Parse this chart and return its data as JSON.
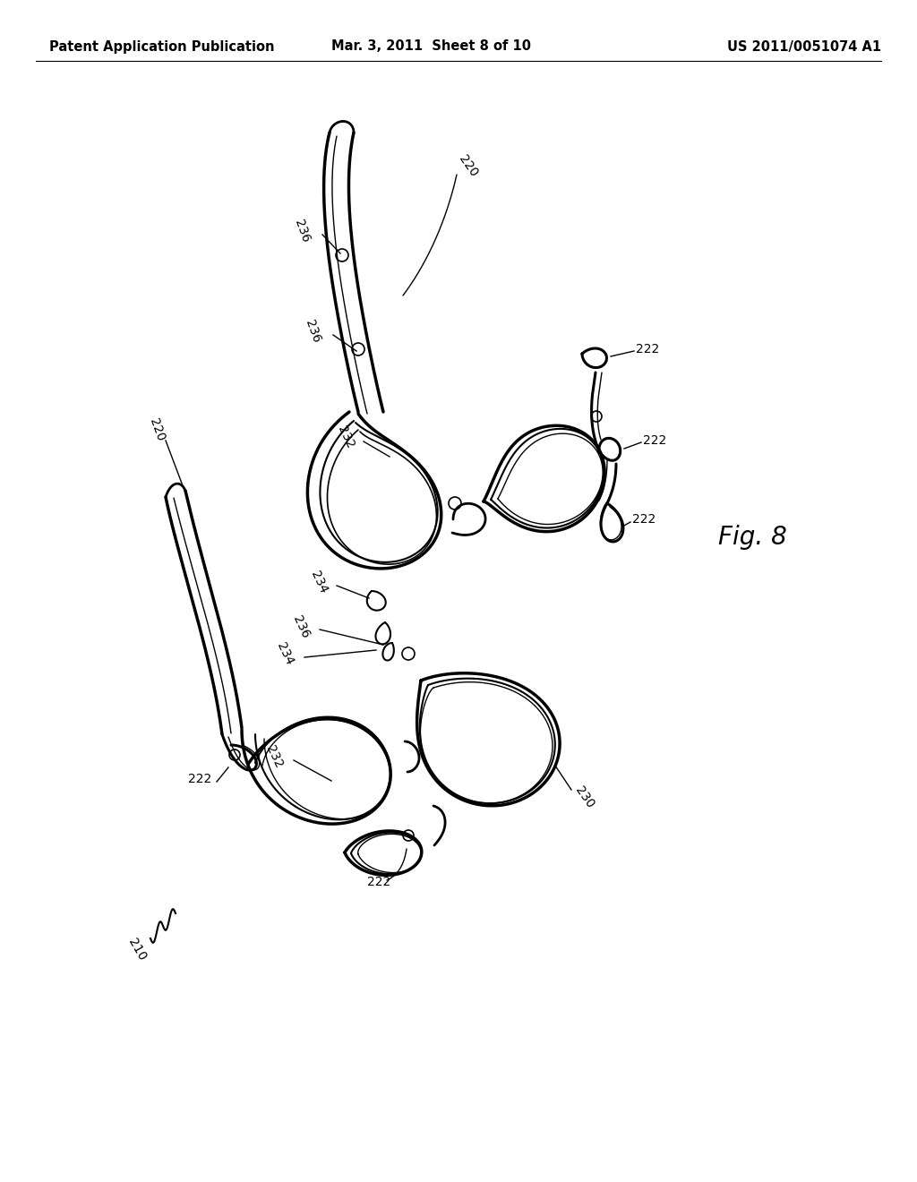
{
  "title_left": "Patent Application Publication",
  "title_mid": "Mar. 3, 2011  Sheet 8 of 10",
  "title_right": "US 2011/0051074 A1",
  "fig_label": "Fig. 8",
  "background_color": "#ffffff",
  "line_color": "#000000",
  "header_fontsize": 10.5,
  "label_fontsize": 10,
  "fig_label_fontsize": 20
}
